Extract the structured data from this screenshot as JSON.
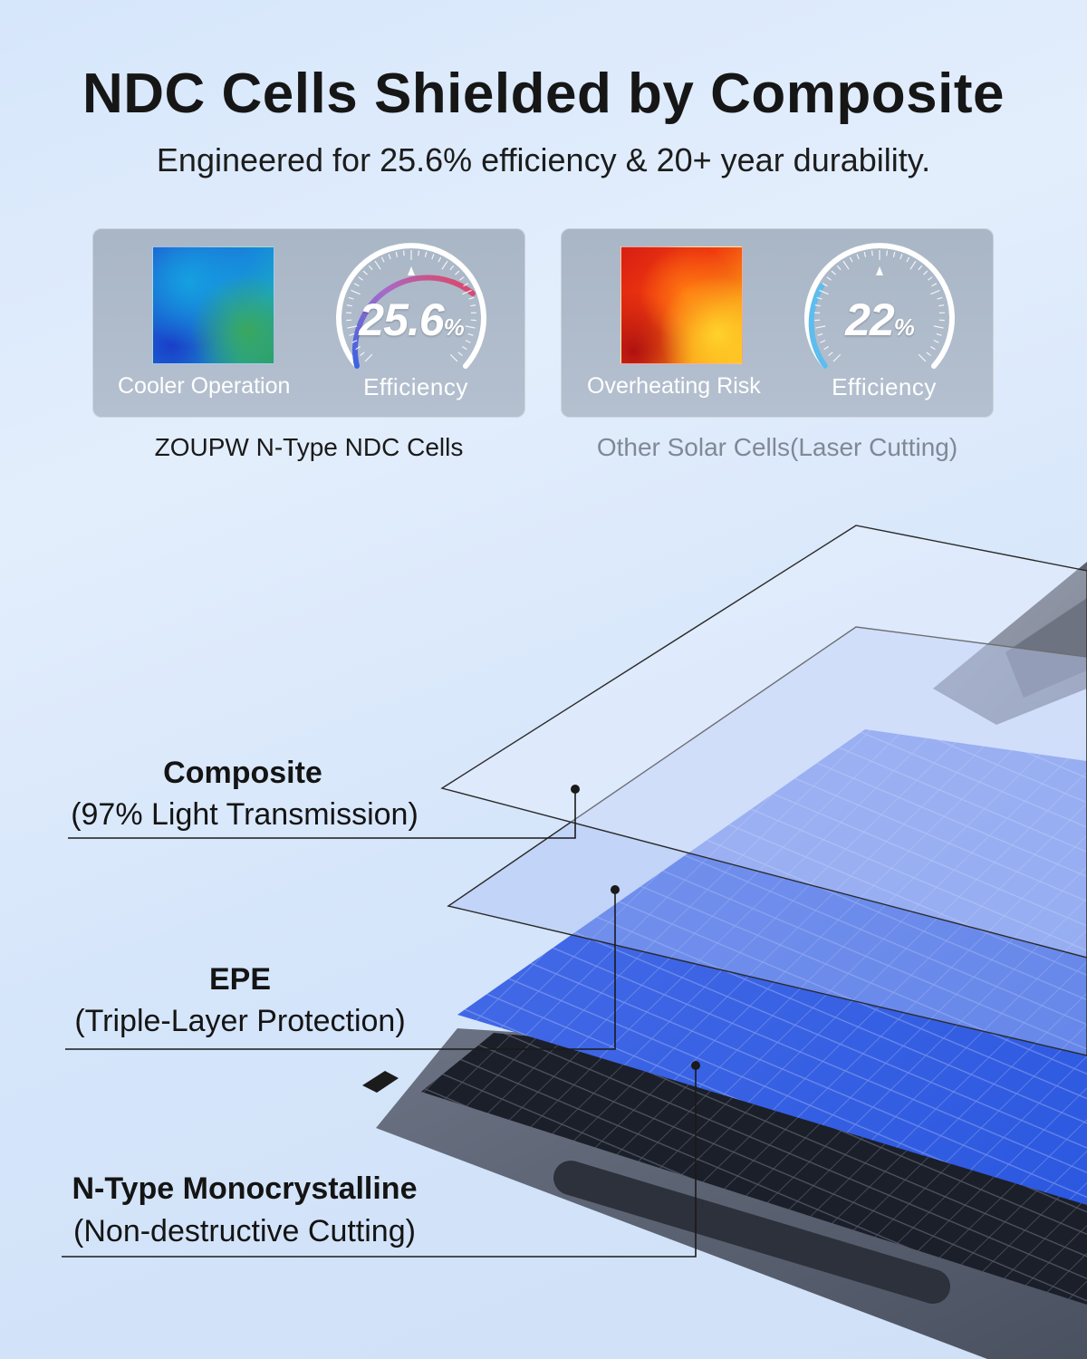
{
  "headline": "NDC Cells Shielded by Composite",
  "subheadline": "Engineered for 25.6% efficiency & 20+ year durability.",
  "comparison": {
    "zoupw": {
      "thermal_label": "Cooler Operation",
      "efficiency_value": "25.6",
      "efficiency_unit": "%",
      "efficiency_fraction": 0.9,
      "efficiency_label": "Efficiency",
      "caption": "ZOUPW N-Type NDC Cells",
      "gauge_colors": [
        "#3b63e0",
        "#a66bc9",
        "#e2435f"
      ]
    },
    "other": {
      "thermal_label": "Overheating Risk",
      "efficiency_value": "22",
      "efficiency_unit": "%",
      "efficiency_fraction": 0.22,
      "efficiency_label": "Efficiency",
      "caption": "Other Solar Cells(Laser Cutting)",
      "gauge_colors": [
        "#4fb2ea",
        "#6fcaf2"
      ]
    }
  },
  "layers": [
    {
      "title": "Composite",
      "subtitle": "(97% Light Transmission)"
    },
    {
      "title": "EPE",
      "subtitle": "(Triple-Layer Protection)"
    },
    {
      "title": "N-Type Monocrystalline",
      "subtitle": "(Non-destructive Cutting)"
    }
  ]
}
